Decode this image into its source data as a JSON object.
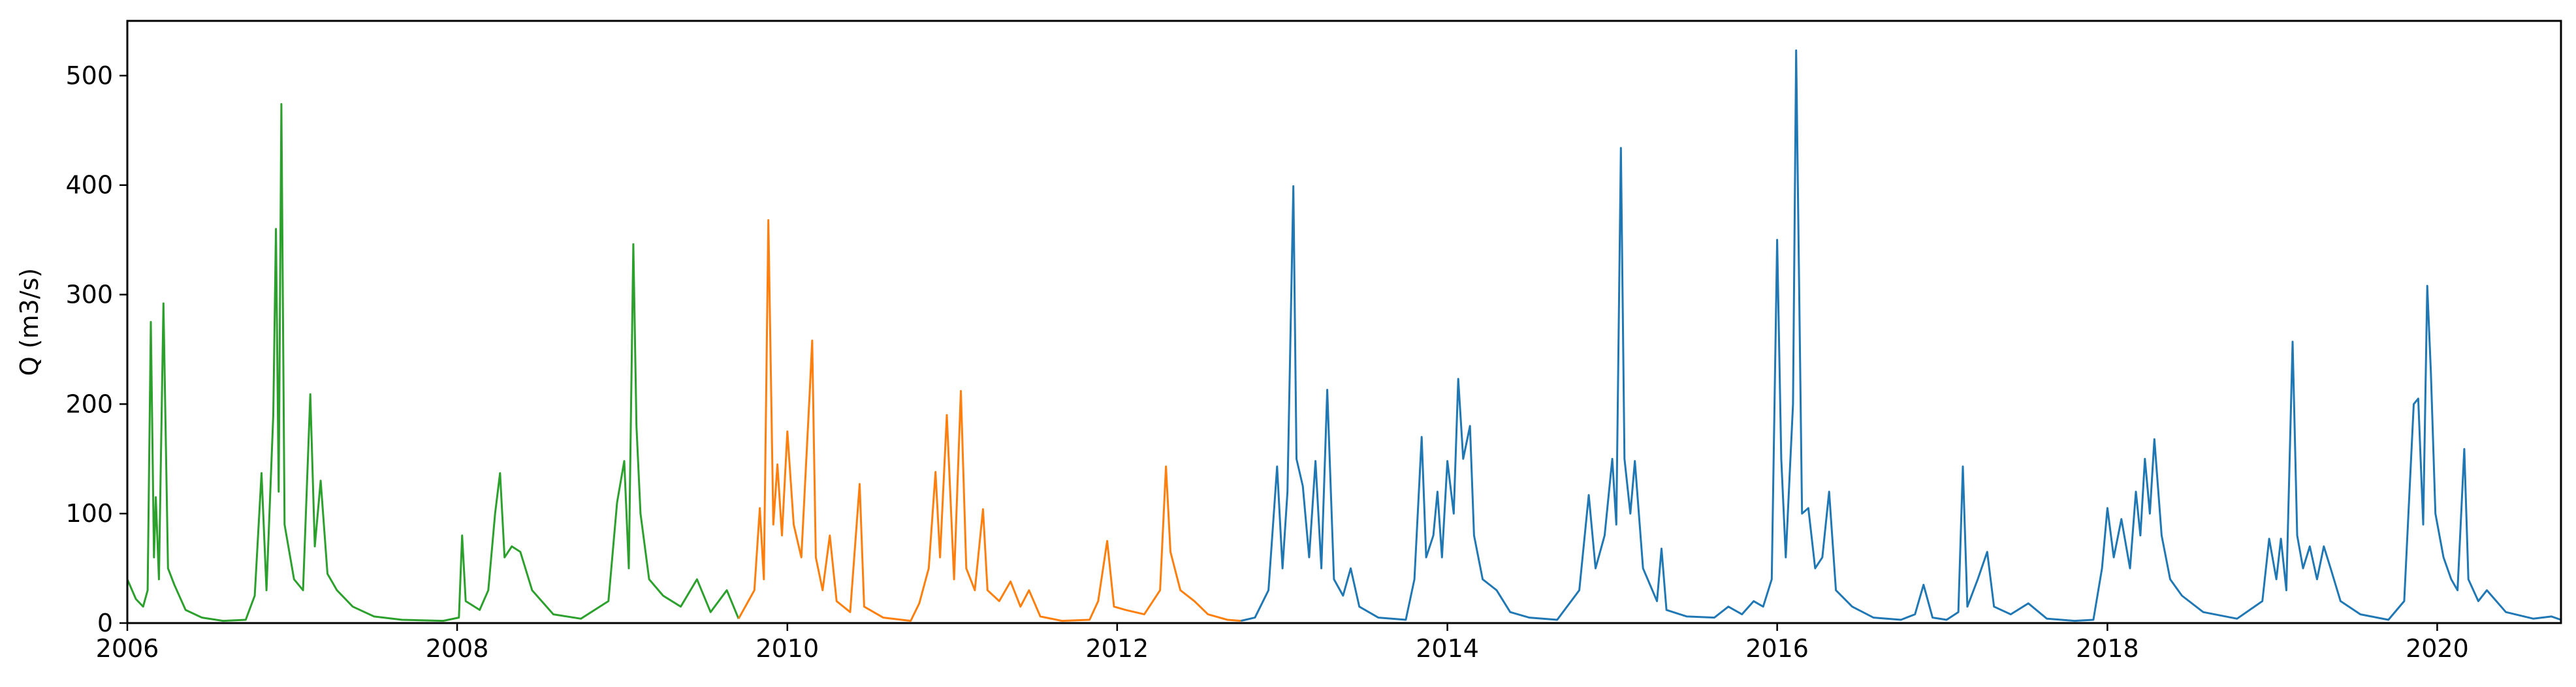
{
  "chart_data": {
    "type": "line",
    "title": "",
    "xlabel": "",
    "ylabel": "Q (m3/s)",
    "xlim": [
      "2006-01-01",
      "2020-10-01"
    ],
    "ylim": [
      0,
      550
    ],
    "x_ticks": [
      "2006",
      "2008",
      "2010",
      "2012",
      "2014",
      "2016",
      "2018",
      "2020"
    ],
    "y_ticks": [
      "0",
      "100",
      "200",
      "300",
      "400",
      "500"
    ],
    "grid": false,
    "legend": "none",
    "series": [
      {
        "color": "#2ca02c",
        "points": [
          [
            "2006-01-01",
            40
          ],
          [
            "2006-01-20",
            22
          ],
          [
            "2006-02-05",
            15
          ],
          [
            "2006-02-15",
            30
          ],
          [
            "2006-02-22",
            275
          ],
          [
            "2006-03-01",
            60
          ],
          [
            "2006-03-05",
            115
          ],
          [
            "2006-03-12",
            40
          ],
          [
            "2006-03-22",
            292
          ],
          [
            "2006-04-01",
            50
          ],
          [
            "2006-04-15",
            35
          ],
          [
            "2006-05-10",
            12
          ],
          [
            "2006-06-15",
            5
          ],
          [
            "2006-08-01",
            2
          ],
          [
            "2006-09-20",
            3
          ],
          [
            "2006-10-10",
            25
          ],
          [
            "2006-10-25",
            137
          ],
          [
            "2006-11-05",
            30
          ],
          [
            "2006-11-20",
            190
          ],
          [
            "2006-11-26",
            360
          ],
          [
            "2006-12-02",
            120
          ],
          [
            "2006-12-08",
            474
          ],
          [
            "2006-12-15",
            90
          ],
          [
            "2007-01-05",
            40
          ],
          [
            "2007-01-25",
            30
          ],
          [
            "2007-02-10",
            209
          ],
          [
            "2007-02-20",
            70
          ],
          [
            "2007-03-05",
            130
          ],
          [
            "2007-03-20",
            45
          ],
          [
            "2007-04-10",
            30
          ],
          [
            "2007-05-15",
            15
          ],
          [
            "2007-07-01",
            6
          ],
          [
            "2007-09-01",
            3
          ],
          [
            "2007-12-01",
            2
          ],
          [
            "2008-01-05",
            5
          ],
          [
            "2008-01-12",
            80
          ],
          [
            "2008-01-20",
            20
          ],
          [
            "2008-02-20",
            12
          ],
          [
            "2008-03-10",
            30
          ],
          [
            "2008-03-25",
            100
          ],
          [
            "2008-04-05",
            137
          ],
          [
            "2008-04-15",
            60
          ],
          [
            "2008-05-01",
            70
          ],
          [
            "2008-05-20",
            65
          ],
          [
            "2008-06-15",
            30
          ],
          [
            "2008-08-01",
            8
          ],
          [
            "2008-10-01",
            4
          ],
          [
            "2008-12-01",
            20
          ],
          [
            "2008-12-20",
            110
          ],
          [
            "2009-01-05",
            148
          ],
          [
            "2009-01-15",
            50
          ],
          [
            "2009-01-25",
            346
          ],
          [
            "2009-02-01",
            180
          ],
          [
            "2009-02-10",
            100
          ],
          [
            "2009-03-01",
            40
          ],
          [
            "2009-04-01",
            25
          ],
          [
            "2009-05-10",
            15
          ],
          [
            "2009-06-15",
            40
          ],
          [
            "2009-07-15",
            10
          ],
          [
            "2009-08-20",
            30
          ],
          [
            "2009-09-15",
            4
          ]
        ]
      },
      {
        "color": "#ff7f0e",
        "points": [
          [
            "2009-09-15",
            4
          ],
          [
            "2009-10-20",
            30
          ],
          [
            "2009-11-01",
            105
          ],
          [
            "2009-11-10",
            40
          ],
          [
            "2009-11-20",
            368
          ],
          [
            "2009-12-01",
            90
          ],
          [
            "2009-12-10",
            145
          ],
          [
            "2009-12-20",
            80
          ],
          [
            "2010-01-01",
            175
          ],
          [
            "2010-01-15",
            90
          ],
          [
            "2010-02-01",
            60
          ],
          [
            "2010-02-20",
            215
          ],
          [
            "2010-02-25",
            258
          ],
          [
            "2010-03-05",
            60
          ],
          [
            "2010-03-20",
            30
          ],
          [
            "2010-04-05",
            80
          ],
          [
            "2010-04-20",
            20
          ],
          [
            "2010-05-20",
            10
          ],
          [
            "2010-06-10",
            127
          ],
          [
            "2010-06-20",
            15
          ],
          [
            "2010-08-01",
            5
          ],
          [
            "2010-10-01",
            2
          ],
          [
            "2010-10-20",
            18
          ],
          [
            "2010-11-10",
            50
          ],
          [
            "2010-11-25",
            138
          ],
          [
            "2010-12-05",
            60
          ],
          [
            "2010-12-20",
            190
          ],
          [
            "2011-01-05",
            40
          ],
          [
            "2011-01-20",
            212
          ],
          [
            "2011-02-01",
            50
          ],
          [
            "2011-02-20",
            30
          ],
          [
            "2011-03-10",
            104
          ],
          [
            "2011-03-20",
            30
          ],
          [
            "2011-04-15",
            20
          ],
          [
            "2011-05-10",
            38
          ],
          [
            "2011-06-01",
            15
          ],
          [
            "2011-06-20",
            30
          ],
          [
            "2011-07-15",
            6
          ],
          [
            "2011-09-01",
            2
          ],
          [
            "2011-11-01",
            3
          ],
          [
            "2011-11-20",
            20
          ],
          [
            "2011-12-10",
            75
          ],
          [
            "2011-12-25",
            15
          ],
          [
            "2012-01-20",
            12
          ],
          [
            "2012-03-01",
            8
          ],
          [
            "2012-04-05",
            30
          ],
          [
            "2012-04-18",
            143
          ],
          [
            "2012-04-28",
            65
          ],
          [
            "2012-05-20",
            30
          ],
          [
            "2012-06-20",
            20
          ],
          [
            "2012-07-20",
            8
          ],
          [
            "2012-09-01",
            3
          ],
          [
            "2012-10-01",
            2
          ]
        ]
      },
      {
        "color": "#1f77b4",
        "points": [
          [
            "2012-10-01",
            2
          ],
          [
            "2012-11-01",
            5
          ],
          [
            "2012-12-01",
            30
          ],
          [
            "2012-12-20",
            143
          ],
          [
            "2013-01-01",
            50
          ],
          [
            "2013-01-12",
            120
          ],
          [
            "2013-01-25",
            399
          ],
          [
            "2013-02-01",
            150
          ],
          [
            "2013-02-15",
            125
          ],
          [
            "2013-03-01",
            60
          ],
          [
            "2013-03-15",
            148
          ],
          [
            "2013-03-28",
            50
          ],
          [
            "2013-04-10",
            213
          ],
          [
            "2013-04-25",
            40
          ],
          [
            "2013-05-15",
            25
          ],
          [
            "2013-06-01",
            50
          ],
          [
            "2013-06-20",
            15
          ],
          [
            "2013-08-01",
            5
          ],
          [
            "2013-10-01",
            3
          ],
          [
            "2013-10-20",
            40
          ],
          [
            "2013-11-05",
            170
          ],
          [
            "2013-11-15",
            60
          ],
          [
            "2013-12-01",
            80
          ],
          [
            "2013-12-10",
            120
          ],
          [
            "2013-12-20",
            60
          ],
          [
            "2014-01-01",
            148
          ],
          [
            "2014-01-15",
            100
          ],
          [
            "2014-01-25",
            223
          ],
          [
            "2014-02-05",
            150
          ],
          [
            "2014-02-20",
            180
          ],
          [
            "2014-03-01",
            80
          ],
          [
            "2014-03-20",
            40
          ],
          [
            "2014-04-20",
            30
          ],
          [
            "2014-05-20",
            10
          ],
          [
            "2014-07-01",
            5
          ],
          [
            "2014-09-01",
            3
          ],
          [
            "2014-10-20",
            30
          ],
          [
            "2014-11-10",
            117
          ],
          [
            "2014-11-25",
            50
          ],
          [
            "2014-12-15",
            80
          ],
          [
            "2015-01-01",
            150
          ],
          [
            "2015-01-10",
            90
          ],
          [
            "2015-01-20",
            434
          ],
          [
            "2015-01-28",
            150
          ],
          [
            "2015-02-10",
            100
          ],
          [
            "2015-02-20",
            148
          ],
          [
            "2015-03-10",
            50
          ],
          [
            "2015-04-10",
            20
          ],
          [
            "2015-04-20",
            68
          ],
          [
            "2015-05-01",
            12
          ],
          [
            "2015-06-15",
            6
          ],
          [
            "2015-08-15",
            5
          ],
          [
            "2015-09-15",
            15
          ],
          [
            "2015-10-15",
            8
          ],
          [
            "2015-11-10",
            20
          ],
          [
            "2015-12-01",
            15
          ],
          [
            "2015-12-20",
            40
          ],
          [
            "2016-01-01",
            350
          ],
          [
            "2016-01-10",
            150
          ],
          [
            "2016-01-20",
            60
          ],
          [
            "2016-02-05",
            200
          ],
          [
            "2016-02-12",
            523
          ],
          [
            "2016-02-18",
            330
          ],
          [
            "2016-02-25",
            100
          ],
          [
            "2016-03-10",
            105
          ],
          [
            "2016-03-25",
            50
          ],
          [
            "2016-04-10",
            60
          ],
          [
            "2016-04-25",
            120
          ],
          [
            "2016-05-10",
            30
          ],
          [
            "2016-06-15",
            15
          ],
          [
            "2016-08-01",
            5
          ],
          [
            "2016-10-01",
            3
          ],
          [
            "2016-11-01",
            8
          ],
          [
            "2016-11-20",
            35
          ],
          [
            "2016-12-10",
            5
          ],
          [
            "2017-01-10",
            3
          ],
          [
            "2017-02-05",
            10
          ],
          [
            "2017-02-15",
            143
          ],
          [
            "2017-02-25",
            15
          ],
          [
            "2017-03-20",
            40
          ],
          [
            "2017-04-10",
            65
          ],
          [
            "2017-04-25",
            15
          ],
          [
            "2017-06-01",
            8
          ],
          [
            "2017-07-10",
            18
          ],
          [
            "2017-08-20",
            4
          ],
          [
            "2017-10-20",
            2
          ],
          [
            "2017-12-01",
            3
          ],
          [
            "2017-12-20",
            50
          ],
          [
            "2018-01-01",
            105
          ],
          [
            "2018-01-15",
            60
          ],
          [
            "2018-02-01",
            95
          ],
          [
            "2018-02-20",
            50
          ],
          [
            "2018-03-05",
            120
          ],
          [
            "2018-03-15",
            80
          ],
          [
            "2018-03-25",
            150
          ],
          [
            "2018-04-05",
            100
          ],
          [
            "2018-04-15",
            168
          ],
          [
            "2018-05-01",
            80
          ],
          [
            "2018-05-20",
            40
          ],
          [
            "2018-06-15",
            25
          ],
          [
            "2018-08-01",
            10
          ],
          [
            "2018-10-15",
            4
          ],
          [
            "2018-12-10",
            20
          ],
          [
            "2018-12-25",
            77
          ],
          [
            "2019-01-10",
            40
          ],
          [
            "2019-01-20",
            77
          ],
          [
            "2019-02-01",
            30
          ],
          [
            "2019-02-15",
            257
          ],
          [
            "2019-02-25",
            80
          ],
          [
            "2019-03-10",
            50
          ],
          [
            "2019-03-25",
            70
          ],
          [
            "2019-04-10",
            40
          ],
          [
            "2019-04-25",
            70
          ],
          [
            "2019-05-10",
            50
          ],
          [
            "2019-06-01",
            20
          ],
          [
            "2019-07-15",
            8
          ],
          [
            "2019-09-15",
            3
          ],
          [
            "2019-10-20",
            20
          ],
          [
            "2019-11-10",
            200
          ],
          [
            "2019-11-20",
            205
          ],
          [
            "2019-12-01",
            90
          ],
          [
            "2019-12-10",
            308
          ],
          [
            "2019-12-18",
            230
          ],
          [
            "2019-12-28",
            100
          ],
          [
            "2020-01-15",
            60
          ],
          [
            "2020-02-01",
            40
          ],
          [
            "2020-02-15",
            30
          ],
          [
            "2020-03-01",
            159
          ],
          [
            "2020-03-10",
            40
          ],
          [
            "2020-04-01",
            20
          ],
          [
            "2020-04-20",
            30
          ],
          [
            "2020-06-01",
            10
          ],
          [
            "2020-08-01",
            4
          ],
          [
            "2020-09-10",
            6
          ],
          [
            "2020-10-01",
            3
          ]
        ]
      }
    ]
  }
}
